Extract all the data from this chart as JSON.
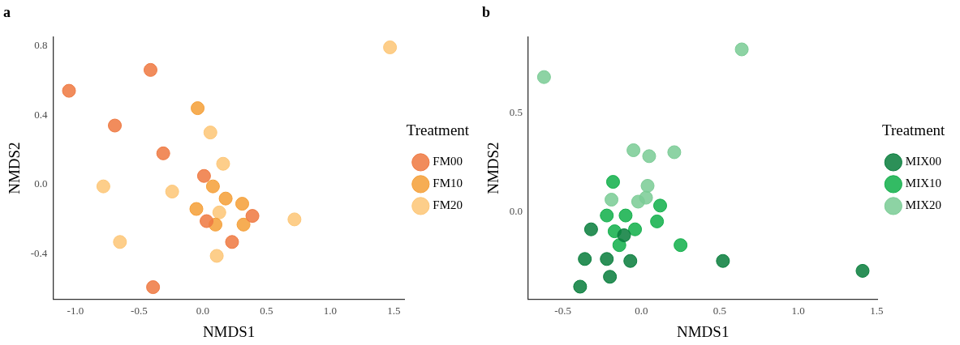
{
  "chart_data": [
    {
      "type": "scatter",
      "title": "a",
      "xlabel": "NMDS1",
      "ylabel": "NMDS2",
      "legend_title": "Treatment",
      "legend": "right",
      "grid": false,
      "marker": "circle",
      "xlim": [
        -1.175,
        1.586
      ],
      "ylim": [
        -0.66,
        0.85
      ],
      "xticks": [
        {
          "value": -1,
          "label": "-1.0"
        },
        {
          "value": -0.5,
          "label": "-0.5"
        },
        {
          "value": 0,
          "label": "0.0"
        },
        {
          "value": 0.5,
          "label": "0.5"
        },
        {
          "value": 1,
          "label": "1.0"
        },
        {
          "value": 1.5,
          "label": "1.5"
        }
      ],
      "yticks": [
        {
          "value": -0.4,
          "label": "-0.4"
        },
        {
          "value": 0,
          "label": "0.0"
        },
        {
          "value": 0.4,
          "label": "0.4"
        },
        {
          "value": 0.8,
          "label": "0.8"
        }
      ],
      "series": [
        {
          "name": "FM00",
          "color": "#ef7a43",
          "x": [
            -0.41,
            -1.05,
            -0.69,
            -0.31,
            0.01,
            0.03,
            0.39,
            0.23,
            -0.39
          ],
          "values": [
            0.66,
            0.54,
            0.34,
            0.18,
            0.05,
            -0.21,
            -0.18,
            -0.33,
            -0.59
          ]
        },
        {
          "name": "FM10",
          "color": "#f5a03a",
          "x": [
            -0.04,
            0.08,
            0.15,
            0.16,
            0.18,
            0.31,
            -0.05,
            0.1,
            0.32
          ],
          "values": [
            0.44,
            -0.01,
            null,
            null,
            -0.08,
            -0.11,
            -0.14,
            -0.23,
            -0.23
          ]
        },
        {
          "name": "FM20",
          "color": "#fdc778",
          "x": [
            1.47,
            0.06,
            0.16,
            -0.78,
            -0.24,
            0.13,
            0.72,
            -0.65,
            0.11
          ],
          "values": [
            0.79,
            0.3,
            0.12,
            -0.01,
            -0.04,
            -0.16,
            -0.2,
            -0.33,
            -0.41
          ]
        }
      ]
    },
    {
      "type": "scatter",
      "title": "b",
      "xlabel": "NMDS1",
      "ylabel": "NMDS2",
      "legend_title": "Treatment",
      "legend": "right",
      "grid": false,
      "marker": "circle",
      "xlim": [
        -0.72,
        1.505
      ],
      "ylim": [
        -0.444,
        0.883
      ],
      "xticks": [
        {
          "value": -0.5,
          "label": "-0.5"
        },
        {
          "value": 0,
          "label": "0.0"
        },
        {
          "value": 0.5,
          "label": "0.5"
        },
        {
          "value": 1,
          "label": "1.0"
        },
        {
          "value": 1.5,
          "label": "1.5"
        }
      ],
      "yticks": [
        {
          "value": 0,
          "label": "0.0"
        },
        {
          "value": 0.5,
          "label": "0.5"
        }
      ],
      "series": [
        {
          "name": "MIX00",
          "color": "#0b7f3e",
          "x": [
            -0.32,
            -0.36,
            -0.22,
            -0.07,
            -0.2,
            -0.39,
            -0.11,
            0.52,
            1.41
          ],
          "values": [
            -0.09,
            -0.24,
            -0.24,
            -0.25,
            -0.33,
            -0.38,
            -0.12,
            -0.25,
            -0.3
          ]
        },
        {
          "name": "MIX10",
          "color": "#14b04c",
          "x": [
            -0.18,
            -0.22,
            -0.1,
            0.12,
            0.1,
            -0.04,
            -0.17,
            -0.14,
            0.25
          ],
          "values": [
            0.15,
            -0.02,
            -0.02,
            0.03,
            -0.05,
            -0.09,
            -0.1,
            -0.17,
            -0.17
          ]
        },
        {
          "name": "MIX20",
          "color": "#7ccc96",
          "x": [
            -0.62,
            0.64,
            -0.05,
            0.05,
            0.21,
            0.04,
            -0.19,
            -0.02,
            0.03
          ],
          "values": [
            0.68,
            0.82,
            0.31,
            0.28,
            0.3,
            0.13,
            0.06,
            0.05,
            0.07
          ]
        }
      ]
    }
  ]
}
